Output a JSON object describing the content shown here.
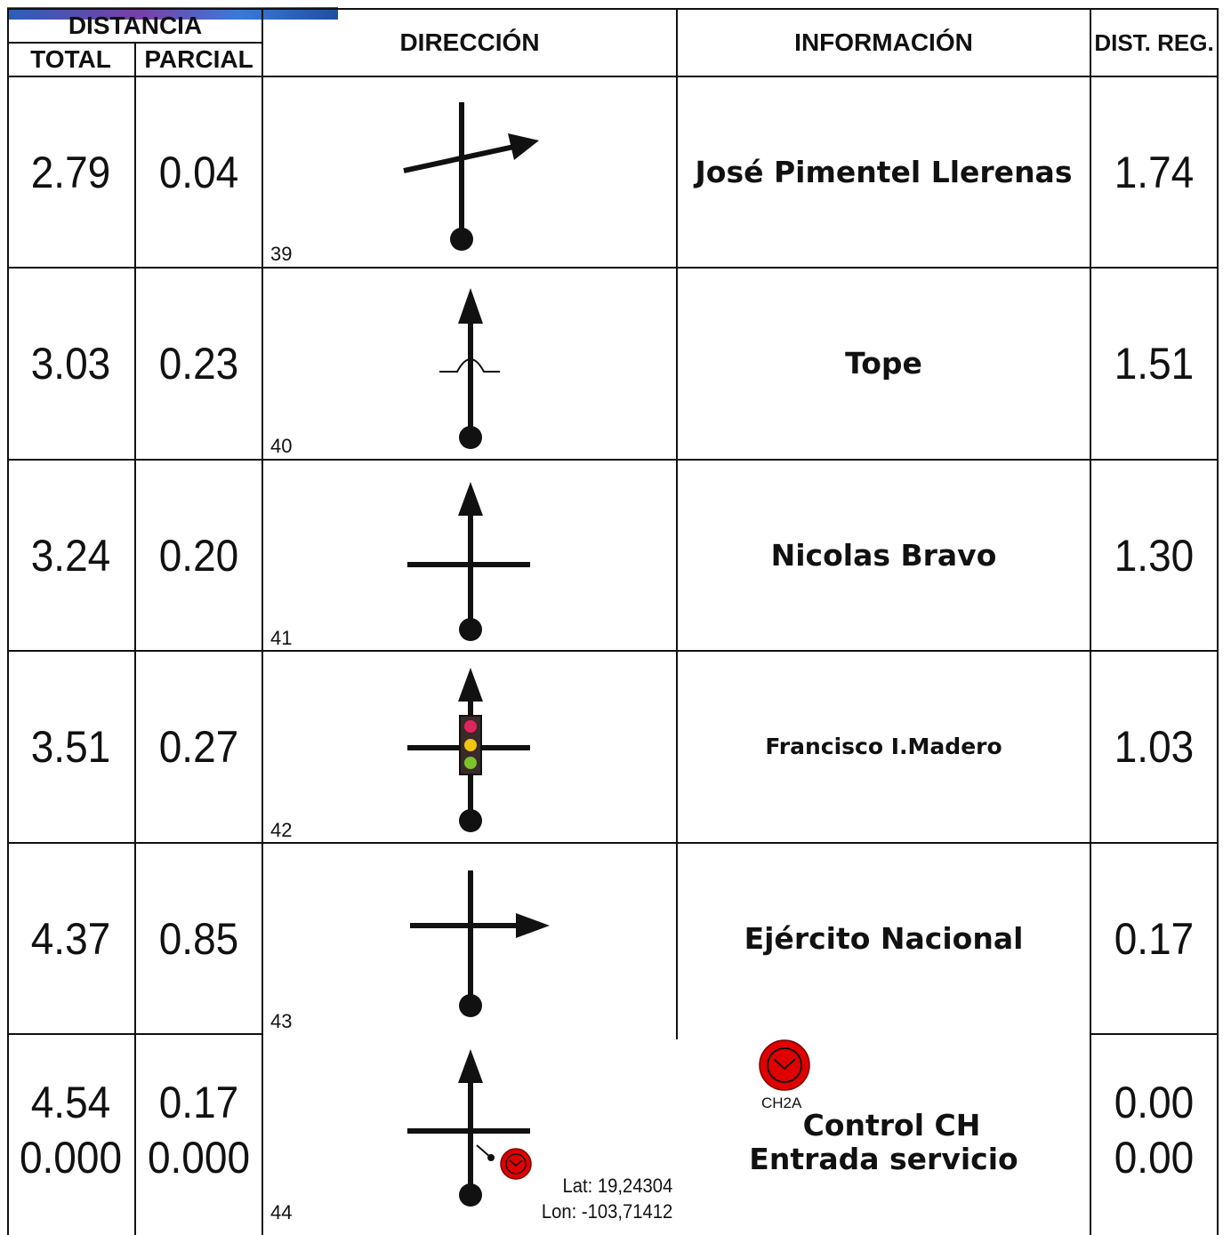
{
  "header": {
    "distancia": "DISTANCIA",
    "total": "TOTAL",
    "parcial": "PARCIAL",
    "direccion": "DIRECCIÓN",
    "informacion": "INFORMACIÓN",
    "dist_reg": "DIST. REG."
  },
  "rows": [
    {
      "total": "2.79",
      "parcial": "0.04",
      "num": "39",
      "info": "José Pimentel Llerenas",
      "dist_reg": "1.74",
      "icon": "crossing-right-arrow-icon"
    },
    {
      "total": "3.03",
      "parcial": "0.23",
      "num": "40",
      "info": "Tope",
      "dist_reg": "1.51",
      "icon": "speed-bump-straight-icon"
    },
    {
      "total": "3.24",
      "parcial": "0.20",
      "num": "41",
      "info": "Nicolas Bravo",
      "dist_reg": "1.30",
      "icon": "crossroad-straight-icon"
    },
    {
      "total": "3.51",
      "parcial": "0.27",
      "num": "42",
      "info": "Francisco I.Madero",
      "dist_reg": "1.03",
      "icon": "traffic-light-straight-icon"
    },
    {
      "total": "4.37",
      "parcial": "0.85",
      "num": "43",
      "info": "Ejército Nacional",
      "dist_reg": "0.17",
      "icon": "crossroad-turn-right-icon"
    },
    {
      "total": "4.54",
      "total2": "0.000",
      "parcial": "0.17",
      "parcial2": "0.000",
      "num": "44",
      "info_line1": "Control CH",
      "info_line2": "Entrada servicio",
      "badge": "CH2A",
      "dist_reg": "0.00",
      "dist_reg2": "0.00",
      "lat": "Lat: 19,24304",
      "lon": "Lon: -103,71412",
      "icon": "control-point-icon"
    }
  ],
  "colors": {
    "red": "#e00000",
    "amber": "#f1c40f",
    "green": "#7cc22d"
  }
}
